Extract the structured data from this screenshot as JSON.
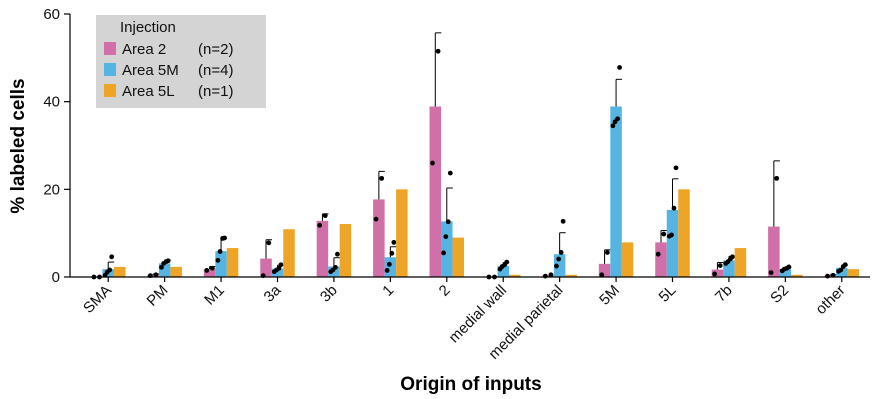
{
  "chart_data": {
    "type": "bar",
    "xlabel": "Origin of inputs",
    "ylabel": "% labeled cells",
    "ylim": [
      0,
      60
    ],
    "yticks": [
      0,
      20,
      40,
      60
    ],
    "grid": false,
    "legend": {
      "title": "Injection",
      "placement": "top-left",
      "background": "#d4d4d4"
    },
    "categories": [
      "SMA",
      "PM",
      "M1",
      "3a",
      "3b",
      "1",
      "2",
      "medial wall",
      "medial parietal",
      "5M",
      "5L",
      "7b",
      "S2",
      "other"
    ],
    "series": [
      {
        "name": "Area 2",
        "n_label": "(n=2)",
        "color": "#d06fa8",
        "values": [
          0.1,
          0.5,
          1.8,
          4.2,
          12.8,
          17.7,
          38.9,
          0.1,
          0.4,
          3.0,
          7.9,
          1.7,
          11.5,
          0.3
        ],
        "errors": [
          0,
          0.2,
          0.6,
          4.3,
          1.6,
          6.4,
          16.8,
          0,
          0,
          3.2,
          2.7,
          1.6,
          15.0,
          0.2
        ],
        "points": [
          [
            0,
            0
          ],
          [
            0.3,
            0.5
          ],
          [
            1.5,
            2.0
          ],
          [
            0.3,
            7.8
          ],
          [
            11.8,
            14.0
          ],
          [
            13.2,
            22.5
          ],
          [
            26.0,
            51.5
          ],
          [
            0,
            0
          ],
          [
            0.2,
            0.5
          ],
          [
            0.5,
            5.6
          ],
          [
            5.2,
            9.8
          ],
          [
            0.7,
            2.6
          ],
          [
            1.0,
            22.5
          ],
          [
            0.2,
            0.4
          ]
        ]
      },
      {
        "name": "Area 5M",
        "n_label": "(n=4)",
        "color": "#55b4e2",
        "values": [
          1.8,
          3.1,
          5.9,
          1.9,
          2.4,
          4.5,
          12.7,
          2.5,
          5.2,
          38.9,
          15.3,
          3.8,
          1.8,
          2.1
        ],
        "errors": [
          1.6,
          0.8,
          2.9,
          0.8,
          2.0,
          2.4,
          7.6,
          0.8,
          4.9,
          6.2,
          7.1,
          0.9,
          0.4,
          0.6
        ],
        "points": [
          [
            0.4,
            1.1,
            1.6,
            4.6
          ],
          [
            2.2,
            3.1,
            3.5,
            3.7
          ],
          [
            3.8,
            5.8,
            8.8,
            8.9
          ],
          [
            1.2,
            1.6,
            2.0,
            2.8
          ],
          [
            1.2,
            1.6,
            2.2,
            5.2
          ],
          [
            1.5,
            2.9,
            5.4,
            7.9
          ],
          [
            5.5,
            9.2,
            12.6,
            23.7
          ],
          [
            1.8,
            2.4,
            2.8,
            3.4
          ],
          [
            2.5,
            4.1,
            5.6,
            12.7
          ],
          [
            34.5,
            35.4,
            36.1,
            47.8
          ],
          [
            9.3,
            9.6,
            15.7,
            24.9
          ],
          [
            3.1,
            3.5,
            4.1,
            4.6
          ],
          [
            1.4,
            1.8,
            2.0,
            2.3
          ],
          [
            1.3,
            1.6,
            2.4,
            2.8
          ]
        ]
      },
      {
        "name": "Area 5L",
        "n_label": "(n=1)",
        "color": "#eda427",
        "values": [
          2.3,
          2.3,
          6.6,
          10.9,
          12.1,
          20.0,
          9.0,
          0.5,
          0.5,
          7.9,
          20.0,
          6.6,
          0.5,
          1.8
        ],
        "errors": [
          0,
          0,
          0,
          0,
          0,
          0,
          0,
          0,
          0,
          0,
          0,
          0,
          0,
          0
        ],
        "points": []
      }
    ]
  }
}
